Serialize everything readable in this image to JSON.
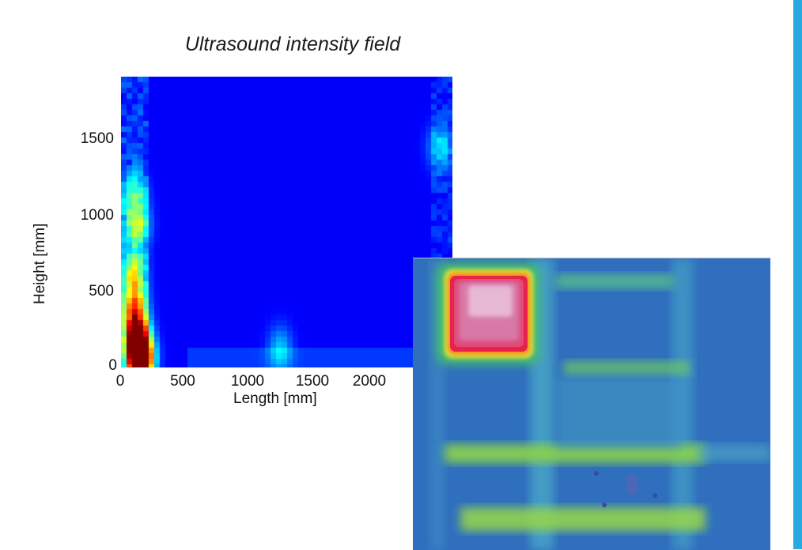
{
  "colors": {
    "accent_bar": "#27a9e1",
    "heatmap_background": "#2b2d8d"
  },
  "chart_data": {
    "type": "heatmap",
    "title": "Ultrasound intensity field",
    "xlabel": "Length [mm]",
    "ylabel": "Height [mm]",
    "xlim": [
      0,
      2500
    ],
    "ylim": [
      0,
      1850
    ],
    "x_ticks": [
      "0",
      "500",
      "1000",
      "1500",
      "2000"
    ],
    "y_ticks": [
      "0",
      "500",
      "1000",
      "1500"
    ],
    "colormap": "jet",
    "hotspots": [
      {
        "x": 150,
        "y": 40,
        "intensity": 1.0
      },
      {
        "x": 130,
        "y": 120,
        "intensity": 0.7
      },
      {
        "x": 110,
        "y": 240,
        "intensity": 0.55
      },
      {
        "x": 100,
        "y": 400,
        "intensity": 0.45
      },
      {
        "x": 90,
        "y": 600,
        "intensity": 0.4
      },
      {
        "x": 120,
        "y": 900,
        "intensity": 0.4
      },
      {
        "x": 100,
        "y": 1100,
        "intensity": 0.25
      },
      {
        "x": 2400,
        "y": 1400,
        "intensity": 0.2
      },
      {
        "x": 1200,
        "y": 120,
        "intensity": 0.2
      }
    ]
  },
  "inset": {
    "description": "thermal image",
    "colormap": "jet"
  }
}
